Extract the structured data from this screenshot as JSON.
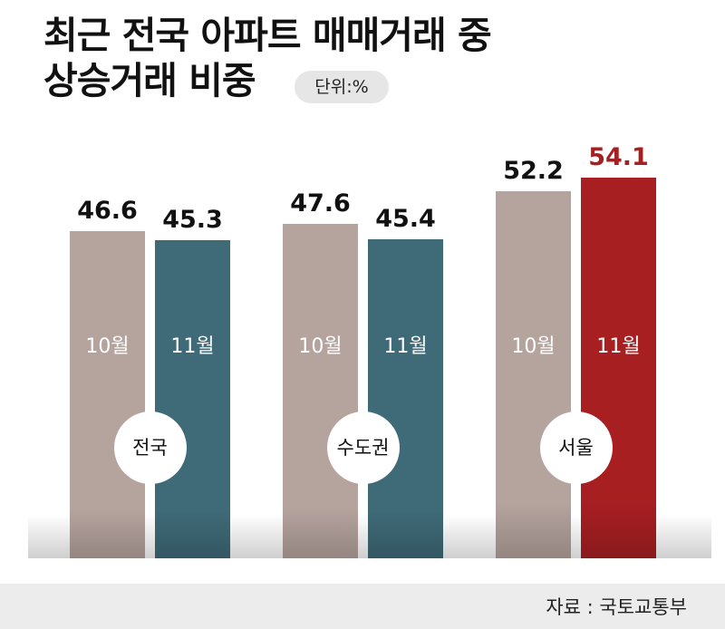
{
  "title": {
    "line1": "최근 전국 아파트 매매거래 중",
    "line2": "상승거래 비중"
  },
  "unit": "단위:%",
  "source": "자료 : 국토교통부",
  "colors": {
    "oct": "#b5a39e",
    "nov_default": "#3f6a78",
    "nov_seoul": "#a81f22",
    "seoul_label": "#a81f22"
  },
  "chart_data": {
    "type": "bar",
    "title": "최근 전국 아파트 매매거래 중 상승거래 비중",
    "unit": "%",
    "categories": [
      "전국",
      "수도권",
      "서울"
    ],
    "series": [
      {
        "name": "10월",
        "values": [
          46.6,
          47.6,
          52.2
        ]
      },
      {
        "name": "11월",
        "values": [
          45.3,
          45.4,
          54.1
        ]
      }
    ],
    "labels": {
      "oct": [
        "46.6",
        "47.6",
        "52.2"
      ],
      "nov": [
        "45.3",
        "45.4",
        "54.1"
      ]
    },
    "month_labels": {
      "oct": "10월",
      "nov": "11월"
    },
    "xlabel": "",
    "ylabel": "",
    "grid": false,
    "legend": "in-bar labels"
  }
}
